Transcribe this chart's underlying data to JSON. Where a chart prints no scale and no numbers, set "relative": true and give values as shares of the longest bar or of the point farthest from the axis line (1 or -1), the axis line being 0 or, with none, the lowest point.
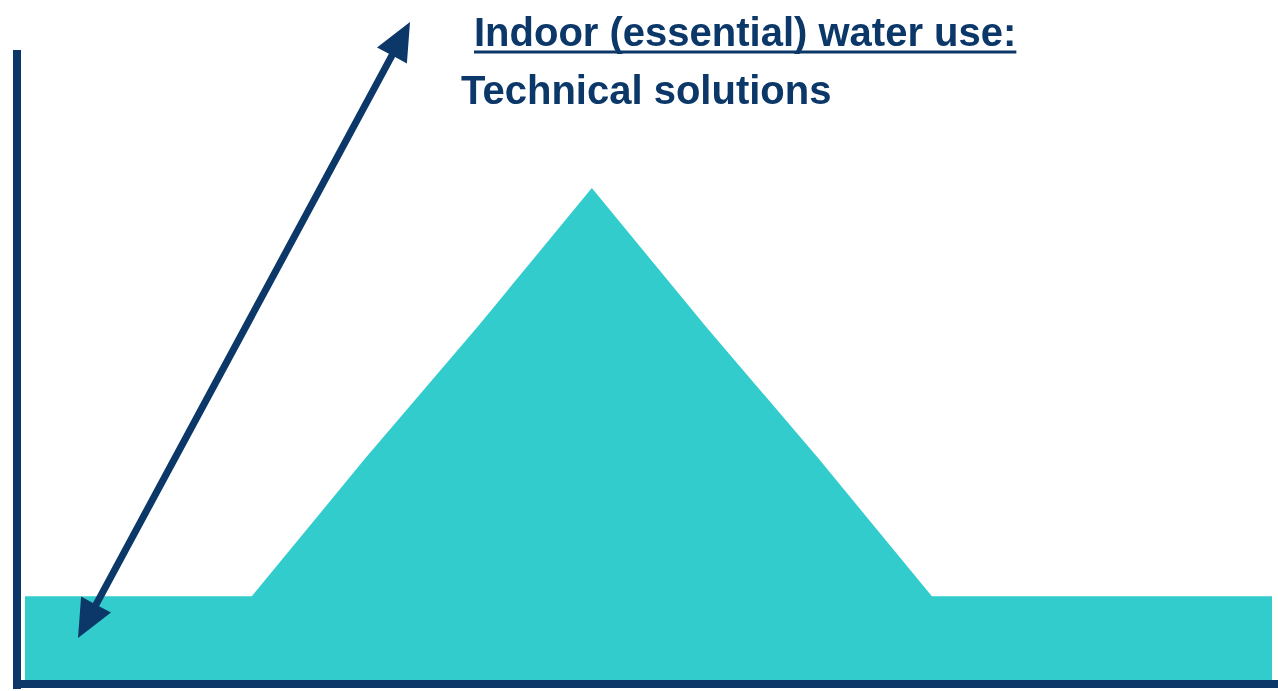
{
  "chart_data": {
    "type": "area",
    "title": "Indoor (essential) water use:",
    "subtitle": "Technical solutions",
    "relative": true,
    "categories": [
      null,
      null,
      null,
      null,
      null,
      null,
      null,
      null,
      null,
      null,
      null,
      null
    ],
    "values": [
      0.17,
      0.17,
      0.17,
      0.45,
      0.72,
      1,
      0.72,
      0.45,
      0.17,
      0.17,
      0.17,
      0.17
    ],
    "color": "#33cccc"
  }
}
